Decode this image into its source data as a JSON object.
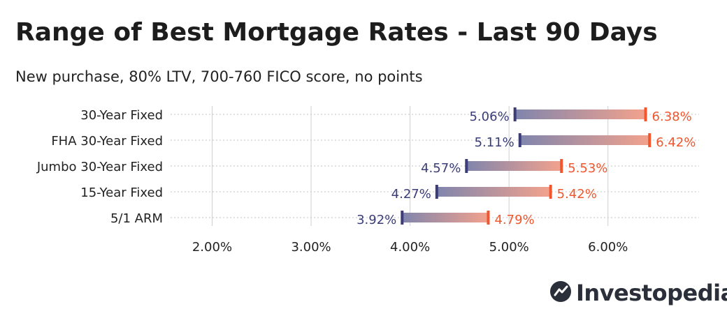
{
  "title": "Range of Best Mortgage Rates - Last 90 Days",
  "subtitle": "New purchase, 80% LTV, 700-760 FICO score, no points",
  "brand": {
    "name": "Investopedia",
    "logo_icon": "investopedia-logo-icon"
  },
  "colors": {
    "low": "#3a3d78",
    "high": "#f0572e",
    "grid": "#cfcfcf",
    "text": "#222222"
  },
  "chart_data": {
    "type": "range-bar",
    "title": "Range of Best Mortgage Rates - Last 90 Days",
    "subtitle": "New purchase, 80% LTV, 700-760 FICO score, no points",
    "categories": [
      "30-Year Fixed",
      "FHA 30-Year Fixed",
      "Jumbo 30-Year Fixed",
      "15-Year Fixed",
      "5/1 ARM"
    ],
    "series": [
      {
        "name": "Low",
        "values": [
          5.06,
          5.11,
          4.57,
          4.27,
          3.92
        ]
      },
      {
        "name": "High",
        "values": [
          6.38,
          6.42,
          5.53,
          5.42,
          4.79
        ]
      }
    ],
    "low_labels": [
      "5.06%",
      "5.11%",
      "4.57%",
      "4.27%",
      "3.92%"
    ],
    "high_labels": [
      "6.38%",
      "6.42%",
      "5.53%",
      "5.42%",
      "4.79%"
    ],
    "xticks": [
      2,
      3,
      4,
      5,
      6
    ],
    "xtick_labels": [
      "2.00%",
      "3.00%",
      "4.00%",
      "5.00%",
      "6.00%"
    ],
    "xlim": [
      1.58,
      6.92
    ],
    "xlabel": "",
    "ylabel": "",
    "grid": true
  }
}
